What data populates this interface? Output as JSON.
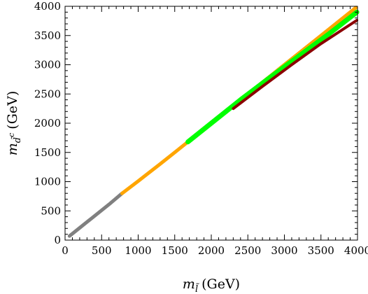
{
  "chart_data": {
    "type": "scatter",
    "xlabel": {
      "symbol": "m",
      "sub": "l̃",
      "unit": "(GeV)"
    },
    "ylabel": {
      "symbol": "m",
      "sub": "d̃",
      "sup": "c",
      "unit": "(GeV)"
    },
    "xlim": [
      0,
      4000
    ],
    "ylim": [
      0,
      4000
    ],
    "x_ticks": [
      "0",
      "500",
      "1000",
      "1500",
      "2000",
      "2500",
      "3000",
      "3500",
      "4000"
    ],
    "y_ticks": [
      "0",
      "500",
      "1000",
      "1500",
      "2000",
      "2500",
      "3000",
      "3500",
      "4000"
    ],
    "grid": false,
    "series": [
      {
        "color": "#808080",
        "x": [
          60,
          200,
          400,
          600,
          780
        ],
        "y": [
          70,
          210,
          410,
          610,
          800
        ]
      },
      {
        "color": "#ffa500",
        "x": [
          780,
          1000,
          1300,
          1700,
          2300,
          3000,
          3500,
          3980
        ],
        "y": [
          800,
          1010,
          1300,
          1700,
          2300,
          3000,
          3500,
          3980
        ]
      },
      {
        "color": "#00ff00",
        "x": [
          1680,
          2000,
          2400,
          2800,
          3200,
          3600,
          3990
        ],
        "y": [
          1680,
          2000,
          2400,
          2780,
          3150,
          3520,
          3900
        ]
      },
      {
        "color": "#8b0000",
        "x": [
          2300,
          2700,
          3100,
          3500,
          3990
        ],
        "y": [
          2250,
          2630,
          3000,
          3360,
          3760
        ]
      }
    ]
  }
}
